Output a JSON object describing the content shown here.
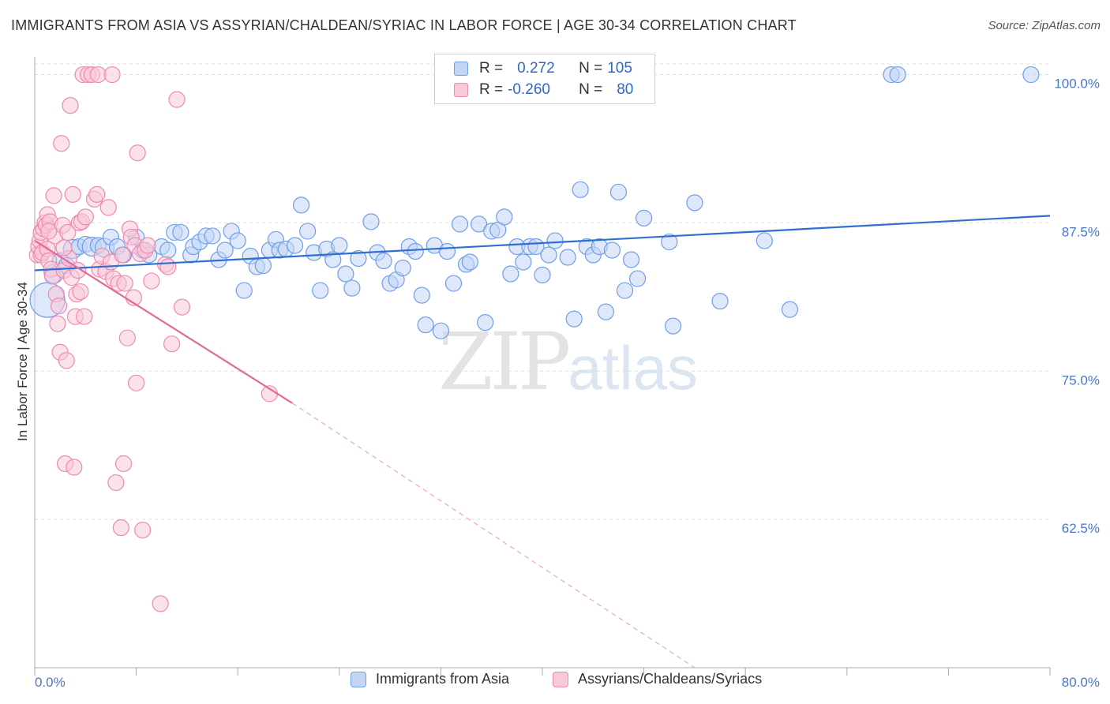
{
  "header": {
    "title": "IMMIGRANTS FROM ASIA VS ASSYRIAN/CHALDEAN/SYRIAC IN LABOR FORCE | AGE 30-34 CORRELATION CHART",
    "source": "Source: ZipAtlas.com"
  },
  "watermark": {
    "zip": "ZIP",
    "atlas": "atlas"
  },
  "legend": {
    "rows": [
      {
        "r_label": "R = ",
        "r_value": "0.272",
        "n_label": "N = ",
        "n_value": "105",
        "color": "#6f9ee6",
        "fill": "#c3d6f5"
      },
      {
        "r_label": "R = ",
        "r_value": "-0.260",
        "n_label": "N = ",
        "n_value": "80",
        "color": "#ee8ab0",
        "fill": "#f8c9d9"
      }
    ]
  },
  "bottom_legend": {
    "items": [
      {
        "label": "Immigrants from Asia",
        "color": "#6f9ee6",
        "fill": "#c3d6f5"
      },
      {
        "label": "Assyrians/Chaldeans/Syriacs",
        "color": "#ee8ab0",
        "fill": "#f8c9d9"
      }
    ]
  },
  "chart_data": {
    "type": "scatter",
    "title": "IMMIGRANTS FROM ASIA VS ASSYRIAN/CHALDEAN/SYRIAC IN LABOR FORCE | AGE 30-34 CORRELATION CHART",
    "xlabel": "",
    "ylabel": "In Labor Force | Age 30-34",
    "xlim": [
      0,
      80
    ],
    "ylim": [
      50,
      101.5
    ],
    "x_tick_labels": [
      "0.0%",
      "80.0%"
    ],
    "y_ticks": [
      62.5,
      75.0,
      87.5,
      100.0
    ],
    "y_tick_labels": [
      "62.5%",
      "75.0%",
      "87.5%",
      "100.0%"
    ],
    "grid": true,
    "legend_position": "top-center",
    "series": [
      {
        "name": "Immigrants from Asia",
        "color": "#6f9ee6",
        "fill": "#c3d6f5",
        "r": "0.272",
        "n": "105",
        "trend": {
          "x": [
            0,
            80
          ],
          "y": [
            83.5,
            88.1
          ],
          "dashed_to": null
        },
        "points": [
          [
            1.0,
            81.0,
            22
          ],
          [
            1.5,
            83.2,
            12
          ],
          [
            2.0,
            84.3,
            10
          ],
          [
            2.5,
            83.9,
            10
          ],
          [
            3.0,
            85.3,
            12
          ],
          [
            3.5,
            85.5,
            10
          ],
          [
            4.0,
            85.7,
            10
          ],
          [
            4.5,
            85.5,
            12
          ],
          [
            5.0,
            85.6,
            10
          ],
          [
            5.5,
            85.4,
            12
          ],
          [
            6.0,
            86.3,
            10
          ],
          [
            6.5,
            85.5,
            10
          ],
          [
            7.0,
            84.8,
            10
          ],
          [
            8.0,
            86.3,
            10
          ],
          [
            8.5,
            85.2,
            10
          ],
          [
            9.0,
            84.8,
            10
          ],
          [
            10.0,
            85.5,
            10
          ],
          [
            10.5,
            85.2,
            10
          ],
          [
            11.0,
            86.7,
            10
          ],
          [
            11.5,
            86.7,
            10
          ],
          [
            12.3,
            84.8,
            10
          ],
          [
            12.5,
            85.5,
            10
          ],
          [
            13.0,
            85.9,
            10
          ],
          [
            13.5,
            86.4,
            10
          ],
          [
            14.0,
            86.4,
            10
          ],
          [
            14.5,
            84.4,
            10
          ],
          [
            15.0,
            85.2,
            10
          ],
          [
            15.5,
            86.8,
            10
          ],
          [
            16.0,
            86.0,
            10
          ],
          [
            16.5,
            81.8,
            10
          ],
          [
            17.0,
            84.7,
            10
          ],
          [
            17.5,
            83.8,
            10
          ],
          [
            18.0,
            83.9,
            10
          ],
          [
            18.5,
            85.2,
            10
          ],
          [
            19.0,
            86.1,
            10
          ],
          [
            19.3,
            85.2,
            10
          ],
          [
            19.8,
            85.3,
            10
          ],
          [
            20.5,
            85.6,
            10
          ],
          [
            21.0,
            89.0,
            10
          ],
          [
            21.5,
            86.8,
            10
          ],
          [
            22.0,
            85.0,
            10
          ],
          [
            22.5,
            81.8,
            10
          ],
          [
            23.0,
            85.3,
            10
          ],
          [
            23.5,
            84.4,
            10
          ],
          [
            24.0,
            85.6,
            10
          ],
          [
            24.5,
            83.2,
            10
          ],
          [
            25.0,
            82.0,
            10
          ],
          [
            25.5,
            84.5,
            10
          ],
          [
            26.5,
            87.6,
            10
          ],
          [
            27.0,
            85.0,
            10
          ],
          [
            27.5,
            84.3,
            10
          ],
          [
            28.0,
            82.4,
            10
          ],
          [
            28.5,
            82.7,
            10
          ],
          [
            29.0,
            83.7,
            10
          ],
          [
            29.5,
            85.5,
            10
          ],
          [
            30.0,
            85.1,
            10
          ],
          [
            30.5,
            81.4,
            10
          ],
          [
            30.8,
            78.9,
            10
          ],
          [
            31.5,
            85.6,
            10
          ],
          [
            32.0,
            78.4,
            10
          ],
          [
            32.5,
            85.1,
            10
          ],
          [
            33.0,
            82.4,
            10
          ],
          [
            33.5,
            87.4,
            10
          ],
          [
            34.0,
            84.0,
            10
          ],
          [
            34.3,
            84.2,
            10
          ],
          [
            35.0,
            87.4,
            10
          ],
          [
            35.5,
            79.1,
            10
          ],
          [
            36.0,
            86.8,
            10
          ],
          [
            36.5,
            86.9,
            10
          ],
          [
            37.0,
            88.0,
            10
          ],
          [
            37.5,
            83.2,
            10
          ],
          [
            38.0,
            85.5,
            10
          ],
          [
            38.5,
            84.2,
            10
          ],
          [
            39.0,
            85.5,
            10
          ],
          [
            39.5,
            85.5,
            10
          ],
          [
            40.0,
            83.1,
            10
          ],
          [
            40.5,
            84.8,
            10
          ],
          [
            41.0,
            86.0,
            10
          ],
          [
            42.0,
            84.6,
            10
          ],
          [
            42.5,
            79.4,
            10
          ],
          [
            43.0,
            90.3,
            10
          ],
          [
            43.5,
            85.5,
            10
          ],
          [
            44.0,
            84.8,
            10
          ],
          [
            44.5,
            85.5,
            10
          ],
          [
            45.0,
            80.0,
            10
          ],
          [
            45.5,
            85.2,
            10
          ],
          [
            46.0,
            90.1,
            10
          ],
          [
            46.5,
            81.8,
            10
          ],
          [
            47.0,
            84.4,
            10
          ],
          [
            47.5,
            82.8,
            10
          ],
          [
            48.0,
            87.9,
            10
          ],
          [
            50.0,
            85.9,
            10
          ],
          [
            50.3,
            78.8,
            10
          ],
          [
            52.0,
            89.2,
            10
          ],
          [
            54.0,
            80.9,
            10
          ],
          [
            57.5,
            86.0,
            10
          ],
          [
            59.5,
            80.2,
            10
          ],
          [
            67.5,
            100.0,
            10
          ],
          [
            68.0,
            100.0,
            10
          ],
          [
            78.5,
            100.0,
            10
          ]
        ]
      },
      {
        "name": "Assyrians/Chaldeans/Syriacs",
        "color": "#ee8ab0",
        "fill": "#f8c9d9",
        "r": "-0.260",
        "n": "80",
        "trend": {
          "x": [
            0,
            20.3
          ],
          "y": [
            86.0,
            72.3
          ],
          "dashed_to": [
            52.0,
            50.0
          ]
        },
        "points": [
          [
            0.2,
            84.8,
            10
          ],
          [
            0.3,
            85.5,
            10
          ],
          [
            0.4,
            86.0,
            10
          ],
          [
            0.5,
            86.7,
            10
          ],
          [
            0.5,
            84.8,
            10
          ],
          [
            0.6,
            85.0,
            10
          ],
          [
            0.7,
            87.0,
            10
          ],
          [
            0.8,
            87.5,
            10
          ],
          [
            0.9,
            87.3,
            10
          ],
          [
            1.0,
            85.3,
            10
          ],
          [
            1.0,
            88.2,
            10
          ],
          [
            1.1,
            84.3,
            10
          ],
          [
            1.2,
            87.6,
            10
          ],
          [
            1.3,
            83.6,
            10
          ],
          [
            1.4,
            83.0,
            10
          ],
          [
            1.5,
            89.8,
            10
          ],
          [
            1.6,
            86.4,
            10
          ],
          [
            1.7,
            81.5,
            10
          ],
          [
            1.8,
            79.0,
            10
          ],
          [
            1.9,
            80.5,
            10
          ],
          [
            2.0,
            76.6,
            10
          ],
          [
            2.1,
            94.2,
            10
          ],
          [
            2.2,
            87.3,
            10
          ],
          [
            2.3,
            83.5,
            10
          ],
          [
            2.4,
            67.2,
            10
          ],
          [
            2.5,
            75.9,
            10
          ],
          [
            2.6,
            86.7,
            10
          ],
          [
            2.7,
            84.5,
            10
          ],
          [
            2.8,
            97.4,
            10
          ],
          [
            2.9,
            82.9,
            10
          ],
          [
            3.0,
            89.9,
            10
          ],
          [
            3.1,
            66.9,
            10
          ],
          [
            3.2,
            79.6,
            10
          ],
          [
            3.3,
            81.5,
            10
          ],
          [
            3.4,
            83.5,
            10
          ],
          [
            3.5,
            87.5,
            10
          ],
          [
            3.6,
            81.7,
            10
          ],
          [
            3.7,
            87.6,
            10
          ],
          [
            3.8,
            100.0,
            10
          ],
          [
            3.9,
            79.6,
            10
          ],
          [
            4.0,
            88.0,
            10
          ],
          [
            4.2,
            100.0,
            10
          ],
          [
            4.5,
            100.0,
            10
          ],
          [
            4.7,
            89.5,
            10
          ],
          [
            4.9,
            89.9,
            10
          ],
          [
            5.0,
            100.0,
            10
          ],
          [
            5.1,
            83.6,
            10
          ],
          [
            5.3,
            84.7,
            10
          ],
          [
            5.6,
            83.4,
            10
          ],
          [
            5.8,
            88.8,
            10
          ],
          [
            6.0,
            84.2,
            10
          ],
          [
            6.1,
            100.0,
            10
          ],
          [
            6.2,
            82.8,
            10
          ],
          [
            6.4,
            65.6,
            10
          ],
          [
            6.6,
            82.4,
            10
          ],
          [
            6.8,
            61.8,
            10
          ],
          [
            6.9,
            84.8,
            10
          ],
          [
            7.0,
            67.2,
            10
          ],
          [
            7.1,
            82.4,
            10
          ],
          [
            7.3,
            77.8,
            10
          ],
          [
            7.5,
            87.0,
            10
          ],
          [
            7.6,
            86.3,
            10
          ],
          [
            7.8,
            81.2,
            10
          ],
          [
            7.9,
            85.6,
            10
          ],
          [
            8.0,
            74.0,
            10
          ],
          [
            8.1,
            93.4,
            10
          ],
          [
            8.3,
            84.9,
            10
          ],
          [
            8.5,
            61.6,
            10
          ],
          [
            8.7,
            85.2,
            10
          ],
          [
            8.9,
            85.6,
            10
          ],
          [
            9.2,
            82.6,
            10
          ],
          [
            9.9,
            55.4,
            10
          ],
          [
            10.3,
            84.0,
            10
          ],
          [
            10.5,
            83.8,
            10
          ],
          [
            10.8,
            77.3,
            10
          ],
          [
            11.2,
            97.9,
            10
          ],
          [
            11.6,
            80.4,
            10
          ],
          [
            18.5,
            73.1,
            10
          ],
          [
            1.1,
            86.8,
            10
          ],
          [
            2.3,
            85.4,
            10
          ]
        ]
      }
    ]
  }
}
